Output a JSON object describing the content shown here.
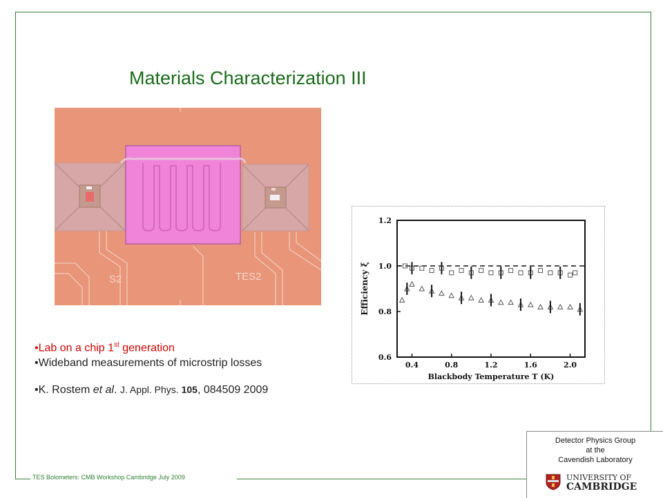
{
  "title": "Materials Characterization III",
  "footer": "TES Bolometers: CMB Workshop Cambridge July 2009",
  "photo": {
    "labels": [
      "S2",
      "TES2"
    ]
  },
  "bullets": {
    "b1_pre": "•Lab  on a chip 1",
    "b1_sup": "st",
    "b1_post": " generation",
    "b2": "•Wideband measurements of microstrip losses",
    "b3_author": "•K. Rostem ",
    "b3_etal": "et al",
    "b3_dot": ". ",
    "b3_journal": "J. Appl. Phys. ",
    "b3_vol": "105",
    "b3_rest": ", 084509 2009"
  },
  "logo": {
    "line1": "Detector Physics Group",
    "line2": "at  the",
    "line3": "Cavendish Laboratory",
    "uni1": "UNIVERSITY OF",
    "uni2": "CAMBRIDGE"
  },
  "chart_data": {
    "type": "scatter",
    "xlabel": "Blackbody Temperature T (K)",
    "ylabel": "Efficiency ξ",
    "xlim": [
      0.25,
      2.15
    ],
    "ylim": [
      0.6,
      1.2
    ],
    "xticks": [
      "0.4",
      "0.8",
      "1.2",
      "1.6",
      "2.0"
    ],
    "yticks": [
      "0.6",
      "0.8",
      "1.0",
      "1.2"
    ],
    "reference_line": 1.0,
    "series": [
      {
        "marker": "square",
        "x": [
          0.33,
          0.4,
          0.5,
          0.6,
          0.7,
          0.8,
          0.9,
          1.0,
          1.1,
          1.2,
          1.3,
          1.4,
          1.5,
          1.6,
          1.7,
          1.8,
          1.9,
          2.0,
          2.05
        ],
        "y": [
          1.0,
          0.99,
          0.99,
          0.98,
          0.99,
          0.97,
          0.98,
          0.97,
          0.98,
          0.97,
          0.97,
          0.98,
          0.97,
          0.97,
          0.98,
          0.97,
          0.97,
          0.96,
          0.97
        ]
      },
      {
        "marker": "triangle",
        "x": [
          0.3,
          0.35,
          0.4,
          0.5,
          0.6,
          0.7,
          0.8,
          0.9,
          1.0,
          1.1,
          1.2,
          1.3,
          1.4,
          1.5,
          1.6,
          1.7,
          1.8,
          1.9,
          2.0,
          2.1
        ],
        "y": [
          0.85,
          0.9,
          0.92,
          0.9,
          0.89,
          0.88,
          0.87,
          0.86,
          0.86,
          0.85,
          0.85,
          0.84,
          0.84,
          0.83,
          0.83,
          0.82,
          0.82,
          0.82,
          0.82,
          0.81
        ]
      }
    ]
  }
}
